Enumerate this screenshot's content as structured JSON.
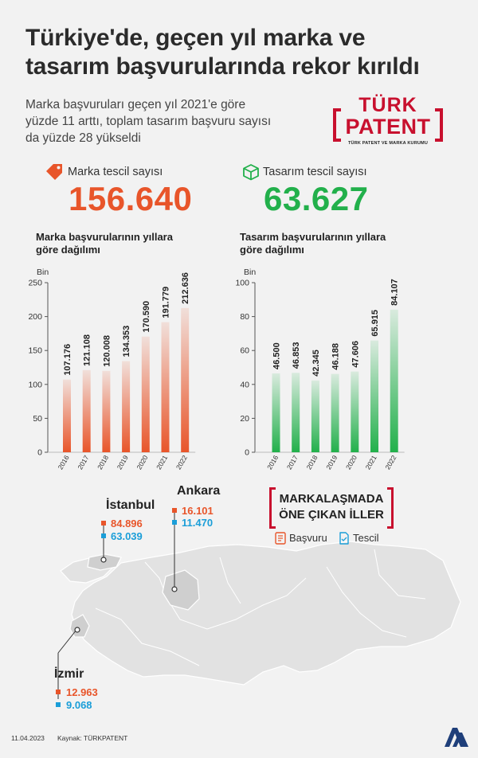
{
  "header": {
    "title_line1": "Türkiye'de, geçen yıl marka ve",
    "title_line2": "tasarım başvurularında rekor kırıldı",
    "subtitle_line1": "Marka başvuruları geçen yıl 2021'e göre",
    "subtitle_line2": "yüzde 11 arttı, toplam tasarım başvuru sayısı",
    "subtitle_line3": "da yüzde 28 yükseldi"
  },
  "logo": {
    "line1": "TÜRK",
    "line2": "PATENT",
    "line3": "TÜRK PATENT VE MARKA KURUMU"
  },
  "stats": {
    "marka_label": "Marka tescil sayısı",
    "marka_value": "156.640",
    "tasarim_label": "Tasarım tescil sayısı",
    "tasarim_value": "63.627"
  },
  "colors": {
    "orange": "#e8552a",
    "green": "#22b04b",
    "blue": "#1b9ed8",
    "red": "#c8102e"
  },
  "chart_data": [
    {
      "type": "bar",
      "title_line1": "Marka başvurularının yıllara",
      "title_line2": "göre dağılımı",
      "ylabel": "Bin",
      "ylim": [
        0,
        250
      ],
      "yticks": [
        0,
        50,
        100,
        150,
        200,
        250
      ],
      "categories": [
        "2016",
        "2017",
        "2018",
        "2019",
        "2020",
        "2021",
        "2022"
      ],
      "values": [
        107.176,
        121.108,
        120.008,
        134.353,
        170.59,
        191.779,
        212.636
      ],
      "value_labels": [
        "107.176",
        "121.108",
        "120.008",
        "134.353",
        "170.590",
        "191.779",
        "212.636"
      ],
      "color": "#e8552a"
    },
    {
      "type": "bar",
      "title_line1": "Tasarım başvurularının yıllara",
      "title_line2": "göre dağılımı",
      "ylabel": "Bin",
      "ylim": [
        0,
        100
      ],
      "yticks": [
        0,
        20,
        40,
        60,
        80,
        100
      ],
      "categories": [
        "2016",
        "2017",
        "2018",
        "2019",
        "2020",
        "2021",
        "2022"
      ],
      "values": [
        46.5,
        46.853,
        42.345,
        46.188,
        47.606,
        65.915,
        84.107
      ],
      "value_labels": [
        "46.500",
        "46.853",
        "42.345",
        "46.188",
        "47.606",
        "65.915",
        "84.107"
      ],
      "color": "#22b04b"
    }
  ],
  "map": {
    "title_line1": "MARKALAŞMADA",
    "title_line2": "ÖNE ÇIKAN İLLER",
    "legend_basvuru": "Başvuru",
    "legend_tescil": "Tescil",
    "cities": {
      "istanbul": {
        "name": "İstanbul",
        "basvuru": "84.896",
        "tescil": "63.039"
      },
      "ankara": {
        "name": "Ankara",
        "basvuru": "16.101",
        "tescil": "11.470"
      },
      "izmir": {
        "name": "İzmir",
        "basvuru": "12.963",
        "tescil": "9.068"
      }
    }
  },
  "footer": {
    "date": "11.04.2023",
    "source": "Kaynak: TÜRKPATENT",
    "brand": "AA"
  }
}
